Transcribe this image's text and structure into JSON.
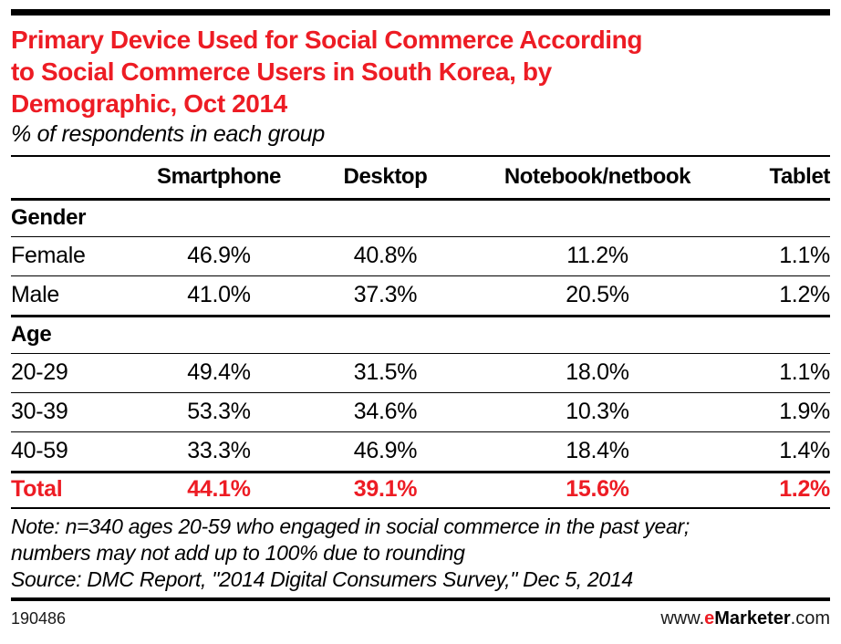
{
  "accent_color": "#ED1C24",
  "header": {
    "title": "Primary Device Used for Social Commerce According to Social Commerce Users in South Korea, by Demographic, Oct 2014",
    "title_lines": [
      "Primary Device Used for Social Commerce According",
      "to Social Commerce Users in South Korea, by",
      "Demographic, Oct 2014"
    ],
    "subtitle": "% of respondents in each group"
  },
  "table": {
    "columns": [
      "",
      "Smartphone",
      "Desktop",
      "Notebook/netbook",
      "Tablet"
    ],
    "sections": [
      {
        "header": "Gender",
        "rows": [
          {
            "label": "Female",
            "values": [
              "46.9%",
              "40.8%",
              "11.2%",
              "1.1%"
            ]
          },
          {
            "label": "Male",
            "values": [
              "41.0%",
              "37.3%",
              "20.5%",
              "1.2%"
            ]
          }
        ]
      },
      {
        "header": "Age",
        "rows": [
          {
            "label": "20-29",
            "values": [
              "49.4%",
              "31.5%",
              "18.0%",
              "1.1%"
            ]
          },
          {
            "label": "30-39",
            "values": [
              "53.3%",
              "34.6%",
              "10.3%",
              "1.9%"
            ]
          },
          {
            "label": "40-59",
            "values": [
              "33.3%",
              "46.9%",
              "18.4%",
              "1.4%"
            ]
          }
        ]
      }
    ],
    "total": {
      "label": "Total",
      "values": [
        "44.1%",
        "39.1%",
        "15.6%",
        "1.2%"
      ]
    }
  },
  "notes": {
    "note_lines": [
      "Note: n=340 ages 20-59 who engaged in social commerce in the past year;",
      "numbers may not add up to 100% due to rounding"
    ],
    "source": "Source: DMC Report, \"2014 Digital Consumers Survey,\" Dec 5, 2014"
  },
  "footer": {
    "chart_id": "190486",
    "url_prefix": "www.",
    "brand_accent": "e",
    "brand_rest": "Marketer",
    "url_suffix": ".com"
  },
  "chart_data": {
    "type": "table",
    "title": "Primary Device Used for Social Commerce According to Social Commerce Users in South Korea, by Demographic, Oct 2014",
    "subtitle": "% of respondents in each group",
    "unit": "%",
    "columns": [
      "Smartphone",
      "Desktop",
      "Notebook/netbook",
      "Tablet"
    ],
    "groups": [
      {
        "name": "Gender",
        "rows": [
          {
            "label": "Female",
            "values": [
              46.9,
              40.8,
              11.2,
              1.1
            ]
          },
          {
            "label": "Male",
            "values": [
              41.0,
              37.3,
              20.5,
              1.2
            ]
          }
        ]
      },
      {
        "name": "Age",
        "rows": [
          {
            "label": "20-29",
            "values": [
              49.4,
              31.5,
              18.0,
              1.1
            ]
          },
          {
            "label": "30-39",
            "values": [
              53.3,
              34.6,
              10.3,
              1.9
            ]
          },
          {
            "label": "40-59",
            "values": [
              33.3,
              46.9,
              18.4,
              1.4
            ]
          }
        ]
      }
    ],
    "total": {
      "label": "Total",
      "values": [
        44.1,
        39.1,
        15.6,
        1.2
      ]
    },
    "note": "Note: n=340 ages 20-59 who engaged in social commerce in the past year; numbers may not add up to 100% due to rounding",
    "source": "Source: DMC Report, \"2014 Digital Consumers Survey,\" Dec 5, 2014",
    "footer_id": "190486"
  }
}
